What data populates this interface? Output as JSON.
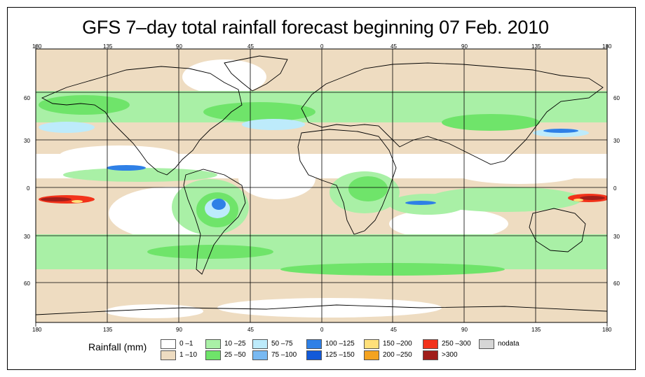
{
  "title": "GFS 7–day total rainfall forecast beginning 07 Feb. 2010",
  "colors": {
    "land_outline": "#000000",
    "grid": "#000000",
    "ocean_background": "#ffffff"
  },
  "map": {
    "type": "world rainfall map",
    "projection": "equirectangular",
    "lon_range": [
      -180,
      180
    ],
    "lat_range": [
      -90,
      90
    ],
    "top_ticks": [
      "180",
      "135",
      "90",
      "45",
      "0",
      "45",
      "90",
      "135",
      "180"
    ],
    "bottom_ticks": [
      "180",
      "135",
      "90",
      "45",
      "0",
      "45",
      "90",
      "135",
      "180"
    ],
    "left_ticks": [
      "60",
      "30",
      "0",
      "30",
      "60"
    ],
    "right_ticks": [
      "60",
      "30",
      "0",
      "30",
      "60"
    ]
  },
  "legend": {
    "label": "Rainfall (mm)",
    "items": [
      {
        "label": "0 –1",
        "color": "#ffffff"
      },
      {
        "label": "1 –10",
        "color": "#eedcc1"
      },
      {
        "label": "10 –25",
        "color": "#a9f0a6"
      },
      {
        "label": "25 –50",
        "color": "#6fe46a"
      },
      {
        "label": "50 –75",
        "color": "#bdebfb"
      },
      {
        "label": "75 –100",
        "color": "#78b9f2"
      },
      {
        "label": "100 –125",
        "color": "#2f80e6"
      },
      {
        "label": "125 –150",
        "color": "#1259d8"
      },
      {
        "label": "150 –200",
        "color": "#ffe07a"
      },
      {
        "label": "200 –250",
        "color": "#f4a320"
      },
      {
        "label": "250 –300",
        "color": "#f2321a"
      },
      {
        "label": ">300",
        "color": "#a01e1a"
      },
      {
        "label": "nodata",
        "color": "#d6d6d6"
      }
    ]
  }
}
